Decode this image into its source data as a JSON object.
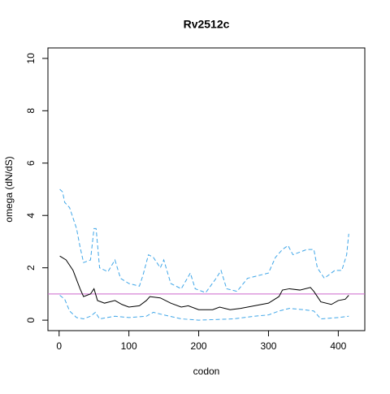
{
  "chart_data": {
    "type": "line",
    "title": "Rv2512c",
    "x_label": "codon",
    "y_label": "omega (dN/dS)",
    "xlim": [
      -16,
      438
    ],
    "ylim": [
      -0.4,
      10.4
    ],
    "xticks": [
      0,
      100,
      200,
      300,
      400
    ],
    "yticks": [
      0,
      2,
      4,
      6,
      8,
      10
    ],
    "hline": 1,
    "hline_color": "#cc66cc",
    "series": [
      {
        "color": "#000000",
        "dashed": false,
        "x": [
          1,
          10,
          20,
          30,
          35,
          45,
          50,
          55,
          65,
          80,
          90,
          100,
          115,
          125,
          130,
          145,
          160,
          175,
          185,
          200,
          220,
          230,
          245,
          260,
          280,
          300,
          315,
          320,
          330,
          345,
          360,
          365,
          375,
          390,
          400,
          410,
          415
        ],
        "values": [
          2.45,
          2.3,
          1.9,
          1.2,
          0.9,
          1.0,
          1.2,
          0.75,
          0.65,
          0.75,
          0.6,
          0.5,
          0.55,
          0.75,
          0.9,
          0.85,
          0.65,
          0.5,
          0.55,
          0.4,
          0.4,
          0.5,
          0.4,
          0.45,
          0.55,
          0.65,
          0.9,
          1.15,
          1.2,
          1.15,
          1.25,
          1.1,
          0.7,
          0.6,
          0.75,
          0.8,
          0.95
        ]
      },
      {
        "color": "#3fa6e8",
        "dashed": true,
        "x": [
          1,
          5,
          8,
          15,
          25,
          30,
          35,
          45,
          50,
          53,
          58,
          70,
          80,
          88,
          100,
          115,
          120,
          128,
          135,
          145,
          150,
          160,
          175,
          188,
          195,
          210,
          225,
          232,
          240,
          255,
          270,
          285,
          300,
          310,
          320,
          328,
          335,
          345,
          355,
          365,
          370,
          380,
          395,
          405,
          412,
          415
        ],
        "values": [
          5.0,
          4.9,
          4.5,
          4.3,
          3.5,
          2.8,
          2.2,
          2.3,
          3.5,
          3.5,
          2.0,
          1.85,
          2.3,
          1.6,
          1.4,
          1.3,
          1.7,
          2.5,
          2.4,
          2.0,
          2.3,
          1.4,
          1.2,
          1.8,
          1.2,
          1.05,
          1.6,
          1.9,
          1.2,
          1.1,
          1.6,
          1.7,
          1.8,
          2.4,
          2.7,
          2.85,
          2.5,
          2.6,
          2.7,
          2.7,
          2.0,
          1.6,
          1.9,
          1.9,
          2.5,
          3.3
        ]
      },
      {
        "color": "#3fa6e8",
        "dashed": true,
        "x": [
          1,
          8,
          15,
          25,
          35,
          45,
          52,
          58,
          80,
          100,
          125,
          135,
          150,
          175,
          200,
          250,
          280,
          300,
          315,
          330,
          350,
          365,
          375,
          400,
          415
        ],
        "values": [
          0.95,
          0.8,
          0.35,
          0.1,
          0.05,
          0.15,
          0.3,
          0.05,
          0.15,
          0.1,
          0.15,
          0.3,
          0.2,
          0.05,
          0.0,
          0.05,
          0.15,
          0.2,
          0.35,
          0.45,
          0.4,
          0.35,
          0.05,
          0.1,
          0.15
        ]
      }
    ]
  }
}
